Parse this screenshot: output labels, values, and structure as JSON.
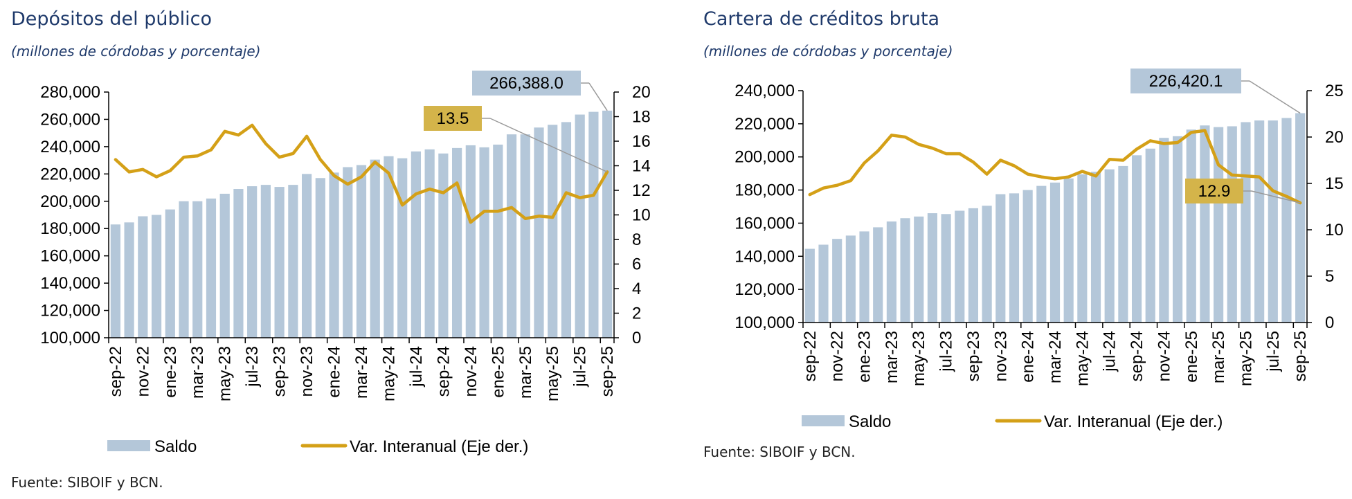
{
  "source_text": "Fuente: SIBOIF y BCN.",
  "chart_data": [
    {
      "type": "bar",
      "title": "Depósitos del público",
      "subtitle": "(millones de córdobas y porcentaje)",
      "x": [
        "sep-22",
        "oct-22",
        "nov-22",
        "dic-22",
        "ene-23",
        "feb-23",
        "mar-23",
        "abr-23",
        "may-23",
        "jun-23",
        "jul-23",
        "ago-23",
        "sep-23",
        "oct-23",
        "nov-23",
        "dic-23",
        "ene-24",
        "feb-24",
        "mar-24",
        "abr-24",
        "may-24",
        "jun-24",
        "jul-24",
        "ago-24",
        "sep-24",
        "oct-24",
        "nov-24",
        "dic-24",
        "ene-25",
        "feb-25",
        "mar-25",
        "abr-25",
        "may-25",
        "jun-25",
        "jul-25",
        "ago-25",
        "sep-25"
      ],
      "x_tick_labels": [
        "sep-22",
        "nov-22",
        "ene-23",
        "mar-23",
        "may-23",
        "jul-23",
        "sep-23",
        "nov-23",
        "ene-24",
        "mar-24",
        "may-24",
        "jul-24",
        "sep-24",
        "nov-24",
        "ene-25",
        "mar-25",
        "may-25",
        "jul-25",
        "sep-25"
      ],
      "series": [
        {
          "name": "Saldo",
          "kind": "bar",
          "axis": "left",
          "color": "#b4c7d9",
          "values": [
            183000,
            184500,
            189000,
            190000,
            194000,
            200000,
            200000,
            202000,
            205500,
            209000,
            211000,
            212000,
            210500,
            212000,
            220000,
            217000,
            221000,
            225000,
            226500,
            230500,
            233000,
            231500,
            236500,
            238000,
            235000,
            239000,
            241000,
            239500,
            241500,
            249000,
            249000,
            254000,
            256000,
            258000,
            263500,
            265500,
            266388.0
          ]
        },
        {
          "name": "Var. Interanual (Eje der.)",
          "kind": "line",
          "axis": "right",
          "color": "#d4a017",
          "values": [
            14.5,
            13.5,
            13.7,
            13.1,
            13.6,
            14.7,
            14.8,
            15.3,
            16.8,
            16.5,
            17.3,
            15.8,
            14.7,
            15.0,
            16.4,
            14.5,
            13.2,
            12.5,
            13.1,
            14.3,
            13.4,
            10.8,
            11.7,
            12.1,
            11.8,
            12.6,
            9.4,
            10.3,
            10.3,
            10.6,
            9.7,
            9.9,
            9.8,
            11.8,
            11.4,
            11.6,
            13.5
          ]
        }
      ],
      "ylim": [
        100000,
        280000
      ],
      "yticks": [
        "100,000",
        "120,000",
        "140,000",
        "160,000",
        "180,000",
        "200,000",
        "220,000",
        "240,000",
        "260,000",
        "280,000"
      ],
      "y2lim": [
        0,
        20
      ],
      "y2ticks": [
        "0",
        "2",
        "4",
        "6",
        "8",
        "10",
        "12",
        "14",
        "16",
        "18",
        "20"
      ],
      "annotations": [
        {
          "text": "266,388.0",
          "target": "bar-last",
          "color": "#b4c7d9"
        },
        {
          "text": "13.5",
          "target": "line-last",
          "color": "#d4b44a"
        }
      ],
      "legend_placement": "bottom",
      "grid": false
    },
    {
      "type": "bar",
      "title": "Cartera de créditos bruta",
      "subtitle": "(millones de córdobas y porcentaje)",
      "x": [
        "sep-22",
        "oct-22",
        "nov-22",
        "dic-22",
        "ene-23",
        "feb-23",
        "mar-23",
        "abr-23",
        "may-23",
        "jun-23",
        "jul-23",
        "ago-23",
        "sep-23",
        "oct-23",
        "nov-23",
        "dic-23",
        "ene-24",
        "feb-24",
        "mar-24",
        "abr-24",
        "may-24",
        "jun-24",
        "jul-24",
        "ago-24",
        "sep-24",
        "oct-24",
        "nov-24",
        "dic-24",
        "ene-25",
        "feb-25",
        "mar-25",
        "abr-25",
        "may-25",
        "jun-25",
        "jul-25",
        "ago-25",
        "sep-25"
      ],
      "x_tick_labels": [
        "sep-22",
        "nov-22",
        "ene-23",
        "mar-23",
        "may-23",
        "jul-23",
        "sep-23",
        "nov-23",
        "ene-24",
        "mar-24",
        "may-24",
        "jul-24",
        "sep-24",
        "nov-24",
        "ene-25",
        "mar-25",
        "may-25",
        "jul-25",
        "sep-25"
      ],
      "series": [
        {
          "name": "Saldo",
          "kind": "bar",
          "axis": "left",
          "color": "#b4c7d9",
          "values": [
            144500,
            147000,
            150500,
            152500,
            155000,
            157500,
            161000,
            163000,
            164000,
            166000,
            165500,
            167500,
            169000,
            170500,
            177500,
            178000,
            180000,
            182500,
            184500,
            187000,
            189500,
            191000,
            192500,
            194500,
            201000,
            205000,
            211500,
            212500,
            216500,
            219000,
            218000,
            218500,
            221000,
            222000,
            222000,
            223500,
            226420.1
          ]
        },
        {
          "name": "Var. Interanual (Eje der.)",
          "kind": "line",
          "axis": "right",
          "color": "#d4a017",
          "values": [
            13.8,
            14.5,
            14.8,
            15.3,
            17.2,
            18.5,
            20.2,
            20.0,
            19.2,
            18.8,
            18.2,
            18.2,
            17.3,
            16.0,
            17.5,
            16.9,
            16.0,
            15.7,
            15.5,
            15.7,
            16.3,
            15.8,
            17.6,
            17.5,
            18.7,
            19.6,
            19.3,
            19.4,
            20.5,
            20.7,
            17.0,
            15.9,
            15.8,
            15.7,
            14.2,
            13.6,
            12.9
          ]
        }
      ],
      "ylim": [
        100000,
        240000
      ],
      "yticks": [
        "100,000",
        "120,000",
        "140,000",
        "160,000",
        "180,000",
        "200,000",
        "220,000",
        "240,000"
      ],
      "y2lim": [
        0,
        25
      ],
      "y2ticks": [
        "0",
        "5",
        "10",
        "15",
        "20",
        "25"
      ],
      "annotations": [
        {
          "text": "226,420.1",
          "target": "bar-last",
          "color": "#b4c7d9"
        },
        {
          "text": "12.9",
          "target": "line-last",
          "color": "#d4b44a"
        }
      ],
      "legend_placement": "bottom",
      "grid": false
    }
  ]
}
